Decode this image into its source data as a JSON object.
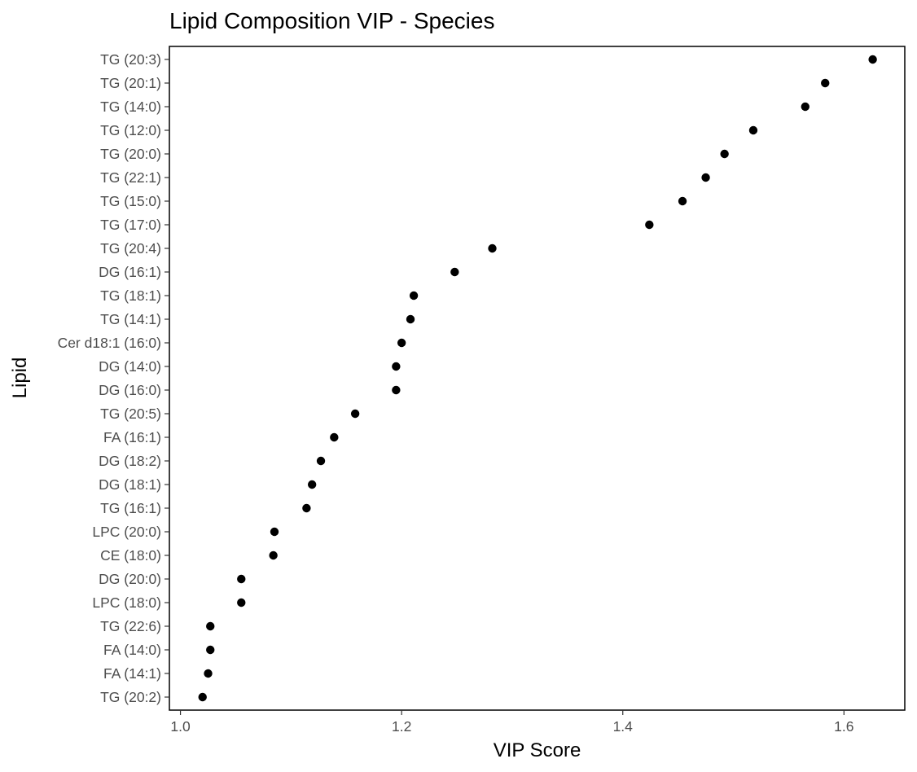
{
  "chart_data": {
    "type": "scatter",
    "title": "Lipid Composition VIP - Species",
    "xlabel": "VIP Score",
    "ylabel": "Lipid",
    "xlim": [
      0.99,
      1.655
    ],
    "xticks": [
      1.0,
      1.2,
      1.4,
      1.6
    ],
    "xtick_labels": [
      "1.0",
      "1.2",
      "1.4",
      "1.6"
    ],
    "grid": false,
    "legend": "none",
    "point_color": "#000000",
    "categories": [
      "TG (20:3)",
      "TG (20:1)",
      "TG (14:0)",
      "TG (12:0)",
      "TG (20:0)",
      "TG (22:1)",
      "TG (15:0)",
      "TG (17:0)",
      "TG (20:4)",
      "DG (16:1)",
      "TG (18:1)",
      "TG (14:1)",
      "Cer d18:1 (16:0)",
      "DG (14:0)",
      "DG (16:0)",
      "TG (20:5)",
      "FA (16:1)",
      "DG (18:2)",
      "DG (18:1)",
      "TG (16:1)",
      "LPC (20:0)",
      "CE (18:0)",
      "DG (20:0)",
      "LPC (18:0)",
      "TG (22:6)",
      "FA (14:0)",
      "FA (14:1)",
      "TG (20:2)"
    ],
    "values": [
      1.626,
      1.583,
      1.565,
      1.518,
      1.492,
      1.475,
      1.454,
      1.424,
      1.282,
      1.248,
      1.211,
      1.208,
      1.2,
      1.195,
      1.195,
      1.158,
      1.139,
      1.127,
      1.119,
      1.114,
      1.085,
      1.084,
      1.055,
      1.055,
      1.027,
      1.027,
      1.025,
      1.02
    ]
  }
}
